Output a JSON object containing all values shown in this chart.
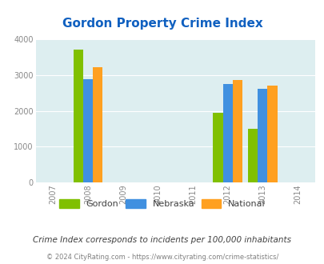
{
  "title": "Gordon Property Crime Index",
  "years": [
    2007,
    2008,
    2009,
    2010,
    2011,
    2012,
    2013,
    2014
  ],
  "bar_data": {
    "2008": {
      "gordon": 3720,
      "nebraska": 2890,
      "national": 3220
    },
    "2012": {
      "gordon": 1950,
      "nebraska": 2760,
      "national": 2860
    },
    "2013": {
      "gordon": 1490,
      "nebraska": 2620,
      "national": 2700
    }
  },
  "gordon_color": "#80c000",
  "nebraska_color": "#4090e0",
  "national_color": "#ffa020",
  "bg_color": "#ddeef0",
  "ylim": [
    0,
    4000
  ],
  "yticks": [
    0,
    1000,
    2000,
    3000,
    4000
  ],
  "legend_labels": [
    "Gordon",
    "Nebraska",
    "National"
  ],
  "subtitle": "Crime Index corresponds to incidents per 100,000 inhabitants",
  "footer": "© 2024 CityRating.com - https://www.cityrating.com/crime-statistics/",
  "title_color": "#1060c0",
  "subtitle_color": "#404040",
  "footer_color": "#808080",
  "bar_width": 0.28,
  "xlim": [
    2006.5,
    2014.5
  ]
}
